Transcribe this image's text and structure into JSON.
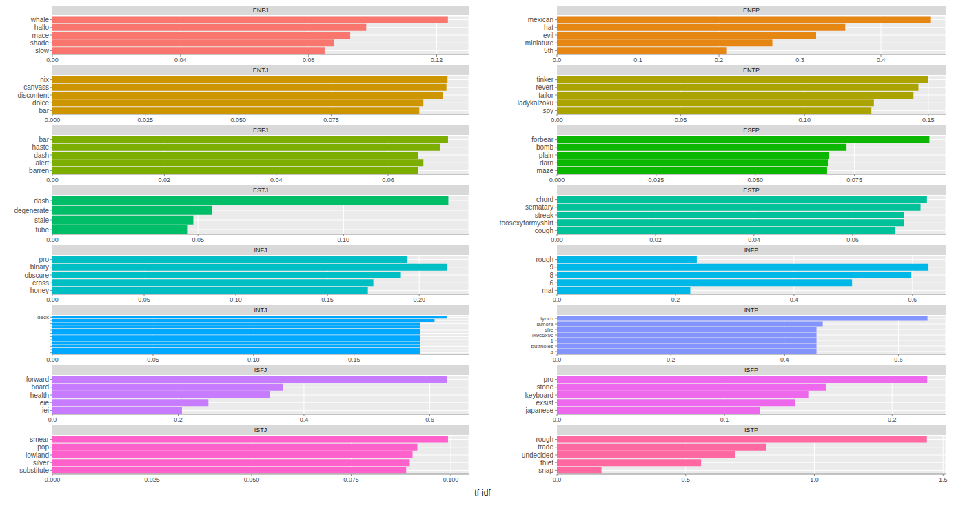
{
  "xlabel": "tf-idf",
  "chart_data": [
    {
      "type": "bar",
      "orientation": "horizontal",
      "grid": true,
      "title": "ENFJ",
      "categories": [
        "whale",
        "hallo",
        "mace",
        "shade",
        "slow"
      ],
      "values": [
        0.1235,
        0.098,
        0.093,
        0.088,
        0.085
      ],
      "color": "#F8766D",
      "xlim": [
        0,
        0.13
      ],
      "xticks": [
        {
          "value": 0,
          "label": "0.00"
        },
        0.04,
        0.08,
        0.12
      ]
    },
    {
      "type": "bar",
      "orientation": "horizontal",
      "grid": true,
      "title": "ENFP",
      "categories": [
        "mexican",
        "hat",
        "evil",
        "miniature",
        "5th"
      ],
      "values": [
        0.461,
        0.356,
        0.32,
        0.266,
        0.209
      ],
      "color": "#E68613",
      "xlim": [
        0,
        0.48
      ],
      "xticks": [
        {
          "value": 0,
          "label": "0.0"
        },
        0.1,
        0.2,
        0.3,
        0.4
      ]
    },
    {
      "type": "bar",
      "orientation": "horizontal",
      "grid": true,
      "title": "ENTJ",
      "categories": [
        "nix",
        "canvass",
        "discontent",
        "dolce",
        "bar"
      ],
      "values": [
        0.1063,
        0.106,
        0.105,
        0.0998,
        0.0987
      ],
      "color": "#CD9600",
      "xlim": [
        0,
        0.112
      ],
      "xticks": [
        {
          "value": 0,
          "label": "0.000"
        },
        0.025,
        {
          "value": 0.05,
          "label": "0.050"
        },
        0.075
      ]
    },
    {
      "type": "bar",
      "orientation": "horizontal",
      "grid": true,
      "title": "ENTP",
      "categories": [
        "tinker",
        "revert",
        "tailor",
        "ladykaizoku",
        "spy"
      ],
      "values": [
        0.15,
        0.146,
        0.144,
        0.128,
        0.127
      ],
      "color": "#ABA300",
      "xlim": [
        0,
        0.157
      ],
      "xticks": [
        {
          "value": 0,
          "label": "0.00"
        },
        0.05,
        {
          "value": 0.1,
          "label": "0.10"
        },
        0.15
      ]
    },
    {
      "type": "bar",
      "orientation": "horizontal",
      "grid": true,
      "title": "ESFJ",
      "categories": [
        "bar",
        "haste",
        "dash",
        "alert",
        "barren"
      ],
      "values": [
        0.0707,
        0.0693,
        0.0653,
        0.0663,
        0.0653
      ],
      "color": "#7CAE00",
      "xlim": [
        0,
        0.0744
      ],
      "xticks": [
        {
          "value": 0,
          "label": "0.00"
        },
        0.02,
        0.04,
        0.06
      ]
    },
    {
      "type": "bar",
      "orientation": "horizontal",
      "grid": true,
      "title": "ESFP",
      "categories": [
        "forbear",
        "bomb",
        "plain",
        "darn",
        "maze"
      ],
      "values": [
        0.0939,
        0.073,
        0.0686,
        0.0683,
        0.0681
      ],
      "color": "#0CB702",
      "xlim": [
        0,
        0.098
      ],
      "xticks": [
        {
          "value": 0,
          "label": "0.000"
        },
        0.025,
        {
          "value": 0.05,
          "label": "0.050"
        },
        0.075
      ]
    },
    {
      "type": "bar",
      "orientation": "horizontal",
      "grid": true,
      "title": "ESTJ",
      "categories": [
        "dash",
        "degenerate",
        "stale",
        "tube"
      ],
      "values": [
        0.136,
        0.0547,
        0.0484,
        0.0465
      ],
      "color": "#00BE67",
      "xlim": [
        0,
        0.143
      ],
      "xticks": [
        {
          "value": 0,
          "label": "0.00"
        },
        0.05,
        {
          "value": 0.1,
          "label": "0.10"
        }
      ]
    },
    {
      "type": "bar",
      "orientation": "horizontal",
      "grid": true,
      "title": "ESTP",
      "categories": [
        "chord",
        "sematary",
        "streak",
        "toosexyformyshirt",
        "cough"
      ],
      "values": [
        0.0751,
        0.0738,
        0.0705,
        0.0704,
        0.0687
      ],
      "color": "#00C19A",
      "xlim": [
        0,
        0.0789
      ],
      "xticks": [
        {
          "value": 0,
          "label": "0.00"
        },
        0.02,
        0.04,
        0.06
      ]
    },
    {
      "type": "bar",
      "orientation": "horizontal",
      "grid": true,
      "title": "INFJ",
      "categories": [
        "pro",
        "binary",
        "obscure",
        "cross",
        "honey"
      ],
      "values": [
        0.1936,
        0.215,
        0.19,
        0.175,
        0.172
      ],
      "color": "#00BFC4",
      "xlim": [
        0,
        0.227
      ],
      "xticks": [
        {
          "value": 0,
          "label": "0.00"
        },
        0.05,
        {
          "value": 0.1,
          "label": "0.10"
        },
        0.15,
        {
          "value": 0.2,
          "label": "0.20"
        }
      ]
    },
    {
      "type": "bar",
      "orientation": "horizontal",
      "grid": true,
      "title": "INFP",
      "categories": [
        "rough",
        "9",
        "8",
        "6",
        "mat"
      ],
      "values": [
        0.236,
        0.627,
        0.598,
        0.498,
        0.225
      ],
      "color": "#00B8E7",
      "xlim": [
        0,
        0.656
      ],
      "xticks": [
        {
          "value": 0,
          "label": "0.0"
        },
        0.2,
        0.4,
        0.6
      ]
    },
    {
      "type": "bar",
      "orientation": "horizontal",
      "grid": true,
      "title": "INTJ",
      "categories": [
        "deck",
        null,
        null,
        null,
        null,
        null,
        null,
        null,
        null,
        null,
        null,
        null
      ],
      "values": [
        0.196,
        0.19,
        0.183,
        0.183,
        0.183,
        0.183,
        0.183,
        0.183,
        0.183,
        0.183,
        0.183,
        0.183
      ],
      "color": "#00A9FF",
      "xlim": [
        0,
        0.207
      ],
      "xticks": [
        {
          "value": 0,
          "label": "0.00"
        },
        0.05,
        {
          "value": 0.1,
          "label": "0.10"
        },
        0.15
      ]
    },
    {
      "type": "bar",
      "orientation": "horizontal",
      "grid": true,
      "title": "INTP",
      "categories": [
        "lynch",
        "lamora",
        "she",
        "ix9c6x9c",
        "1",
        "buttholes",
        "a"
      ],
      "values": [
        0.651,
        0.467,
        0.456,
        0.456,
        0.456,
        0.456,
        0.456
      ],
      "color": "#8494FF",
      "xlim": [
        0,
        0.683
      ],
      "xticks": [
        {
          "value": 0,
          "label": "0.0"
        },
        0.2,
        0.4,
        0.6
      ]
    },
    {
      "type": "bar",
      "orientation": "horizontal",
      "grid": true,
      "title": "ISFJ",
      "categories": [
        "forward",
        "board",
        "health",
        "eie",
        "iei"
      ],
      "values": [
        0.628,
        0.367,
        0.346,
        0.248,
        0.206
      ],
      "color": "#C77CFF",
      "xlim": [
        0,
        0.662
      ],
      "xticks": [
        {
          "value": 0,
          "label": "0.0"
        },
        0.2,
        0.4,
        0.6
      ]
    },
    {
      "type": "bar",
      "orientation": "horizontal",
      "grid": true,
      "title": "ISFP",
      "categories": [
        "pro",
        "stone",
        "keyboard",
        "exsist",
        "japanese"
      ],
      "values": [
        0.221,
        0.1605,
        0.15,
        0.142,
        0.121
      ],
      "color": "#ED68ED",
      "xlim": [
        0,
        0.232
      ],
      "xticks": [
        {
          "value": 0,
          "label": "0.0"
        },
        0.1,
        0.2
      ]
    },
    {
      "type": "bar",
      "orientation": "horizontal",
      "grid": true,
      "title": "ISTJ",
      "categories": [
        "smear",
        "pop",
        "lowland",
        "silver",
        "substitute"
      ],
      "values": [
        0.0993,
        0.0916,
        0.0904,
        0.0897,
        0.0888
      ],
      "color": "#FF61CC",
      "xlim": [
        0,
        0.1045
      ],
      "xticks": [
        {
          "value": 0,
          "label": "0.000"
        },
        0.025,
        {
          "value": 0.05,
          "label": "0.050"
        },
        0.075,
        {
          "value": 0.1,
          "label": "0.100"
        }
      ]
    },
    {
      "type": "bar",
      "orientation": "horizontal",
      "grid": true,
      "title": "ISTP",
      "categories": [
        "rough",
        "trade",
        "undecided",
        "thief",
        "snap"
      ],
      "values": [
        1.437,
        0.814,
        0.691,
        0.56,
        0.173
      ],
      "color": "#FF68A1",
      "xlim": [
        0,
        1.51
      ],
      "xticks": [
        {
          "value": 0,
          "label": "0.0"
        },
        0.5,
        {
          "value": 1,
          "label": "1.0"
        },
        1.5
      ]
    }
  ]
}
